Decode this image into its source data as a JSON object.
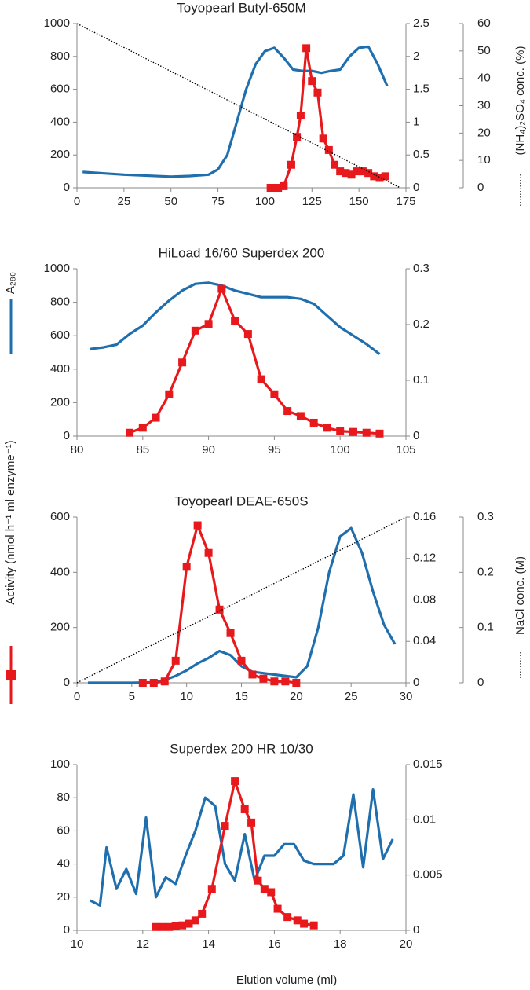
{
  "legend": [
    {
      "name": "A₂₈₀",
      "color": "#1f6fae"
    },
    {
      "name": "Activity (nmol h⁻¹ ml enzyme⁻¹)",
      "color": "#e8191c"
    }
  ],
  "xlabel": "Elution volume (ml)",
  "chart_data": [
    {
      "type": "line",
      "title": "Toyopearl Butyl-650M",
      "xlim": [
        0,
        175
      ],
      "xticks": [
        0,
        25,
        50,
        75,
        100,
        125,
        150,
        175
      ],
      "ylim": [
        0,
        1000
      ],
      "yticks": [
        0,
        200,
        400,
        600,
        800,
        1000
      ],
      "y2lim": [
        0,
        2.5
      ],
      "y2ticks": [
        0,
        0.5,
        1,
        1.5,
        2,
        2.5
      ],
      "y3lim": [
        0,
        60
      ],
      "y3ticks": [
        0,
        10,
        20,
        30,
        40,
        50,
        60
      ],
      "y3label": "(NH₄)₂SO₄ conc. (%)",
      "series": [
        {
          "axis": "y2",
          "color": "#1f6fae",
          "x": [
            3,
            25,
            50,
            60,
            70,
            75,
            80,
            85,
            90,
            95,
            100,
            105,
            110,
            115,
            120,
            125,
            130,
            135,
            140,
            145,
            150,
            155,
            160,
            165
          ],
          "values": [
            0.24,
            0.2,
            0.17,
            0.18,
            0.2,
            0.28,
            0.5,
            1,
            1.5,
            1.88,
            2.08,
            2.13,
            1.98,
            1.8,
            1.78,
            1.78,
            1.75,
            1.78,
            1.8,
            2,
            2.13,
            2.15,
            1.88,
            1.55
          ]
        },
        {
          "axis": "y",
          "color": "#e8191c",
          "marker": "square",
          "x": [
            103,
            105,
            107,
            110,
            114,
            117,
            119,
            122,
            125,
            128,
            131,
            134,
            137,
            140,
            143,
            146,
            149,
            152,
            155,
            158,
            161,
            164
          ],
          "values": [
            0,
            0,
            0,
            10,
            140,
            310,
            440,
            850,
            650,
            580,
            300,
            230,
            140,
            100,
            90,
            80,
            100,
            100,
            90,
            70,
            60,
            70
          ]
        },
        {
          "axis": "y3",
          "color": "#000000",
          "line_style": "dotted",
          "x": [
            0,
            172
          ],
          "values": [
            60,
            0
          ]
        }
      ]
    },
    {
      "type": "line",
      "title": "HiLoad 16/60 Superdex 200",
      "xlim": [
        80,
        105
      ],
      "xticks": [
        80,
        85,
        90,
        95,
        100,
        105
      ],
      "ylim": [
        0,
        1000
      ],
      "yticks": [
        0,
        200,
        400,
        600,
        800,
        1000
      ],
      "y2lim": [
        0,
        0.3
      ],
      "y2ticks": [
        0,
        0.1,
        0.2,
        0.3
      ],
      "series": [
        {
          "axis": "y2",
          "color": "#1f6fae",
          "x": [
            81,
            82,
            83,
            84,
            85,
            86,
            87,
            88,
            89,
            90,
            91,
            92,
            93,
            94,
            95,
            96,
            97,
            98,
            99,
            100,
            101,
            102,
            103
          ],
          "values": [
            0.156,
            0.159,
            0.164,
            0.183,
            0.198,
            0.222,
            0.243,
            0.261,
            0.273,
            0.275,
            0.27,
            0.261,
            0.255,
            0.249,
            0.249,
            0.249,
            0.246,
            0.237,
            0.216,
            0.195,
            0.18,
            0.165,
            0.147
          ]
        },
        {
          "axis": "y",
          "color": "#e8191c",
          "marker": "square",
          "x": [
            84,
            85,
            86,
            87,
            88,
            89,
            90,
            91,
            92,
            93,
            94,
            95,
            96,
            97,
            98,
            99,
            100,
            101,
            102,
            103
          ],
          "values": [
            20,
            50,
            110,
            250,
            440,
            630,
            670,
            880,
            690,
            610,
            340,
            250,
            150,
            120,
            80,
            50,
            30,
            25,
            20,
            15
          ]
        }
      ]
    },
    {
      "type": "line",
      "title": "Toyopearl DEAE-650S",
      "xlim": [
        0,
        30
      ],
      "xticks": [
        0,
        5,
        10,
        15,
        20,
        25,
        30
      ],
      "ylim": [
        0,
        600
      ],
      "yticks": [
        0,
        200,
        400,
        600
      ],
      "y2lim": [
        0,
        0.16
      ],
      "y2ticks": [
        0,
        0.04,
        0.08,
        0.12,
        0.16
      ],
      "y3lim": [
        0,
        0.3
      ],
      "y3ticks": [
        0,
        0.1,
        0.2,
        0.3
      ],
      "y3label": "NaCl conc. (M)",
      "series": [
        {
          "axis": "y2",
          "color": "#1f6fae",
          "x": [
            1,
            3,
            5,
            7,
            8,
            9,
            10,
            11,
            12,
            13,
            14,
            15,
            16,
            17,
            18,
            19,
            20,
            21,
            22,
            23,
            24,
            25,
            26,
            27,
            28,
            29
          ],
          "values": [
            0,
            0,
            0,
            0.0005,
            0.0027,
            0.0067,
            0.012,
            0.0187,
            0.024,
            0.0307,
            0.0267,
            0.016,
            0.0107,
            0.0093,
            0.008,
            0.0067,
            0.0053,
            0.016,
            0.0533,
            0.1067,
            0.1413,
            0.1493,
            0.1253,
            0.088,
            0.056,
            0.0373
          ]
        },
        {
          "axis": "y",
          "color": "#e8191c",
          "marker": "square",
          "x": [
            6,
            7,
            8,
            9,
            10,
            11,
            12,
            13,
            14,
            15,
            16,
            17,
            18,
            19,
            20
          ],
          "values": [
            0,
            0,
            5,
            80,
            420,
            570,
            470,
            265,
            180,
            80,
            30,
            15,
            5,
            5,
            0
          ]
        },
        {
          "axis": "y3",
          "color": "#000000",
          "line_style": "dotted",
          "x": [
            0,
            30
          ],
          "values": [
            0,
            0.3
          ]
        }
      ]
    },
    {
      "type": "line",
      "title": "Superdex 200 HR 10/30",
      "xlim": [
        10,
        20
      ],
      "xticks": [
        10,
        12,
        14,
        16,
        18,
        20
      ],
      "ylim": [
        0,
        100
      ],
      "yticks": [
        0,
        20,
        40,
        60,
        80,
        100
      ],
      "y2lim": [
        0,
        0.015
      ],
      "y2ticks": [
        0,
        0.005,
        0.01,
        0.015
      ],
      "series": [
        {
          "axis": "y2",
          "color": "#1f6fae",
          "x": [
            10.4,
            10.7,
            10.9,
            11.2,
            11.5,
            11.8,
            12.1,
            12.4,
            12.7,
            13.0,
            13.3,
            13.6,
            13.9,
            14.2,
            14.5,
            14.8,
            15.1,
            15.4,
            15.7,
            16.0,
            16.3,
            16.6,
            16.9,
            17.2,
            17.5,
            17.8,
            18.1,
            18.4,
            18.7,
            19.0,
            19.3,
            19.6
          ],
          "values": [
            0.0027,
            0.00225,
            0.0075,
            0.00375,
            0.00555,
            0.0033,
            0.0102,
            0.003,
            0.0048,
            0.0042,
            0.00675,
            0.009,
            0.012,
            0.01125,
            0.006,
            0.0045,
            0.0087,
            0.0045,
            0.00675,
            0.00675,
            0.0078,
            0.0078,
            0.0063,
            0.006,
            0.006,
            0.006,
            0.00675,
            0.0123,
            0.0057,
            0.01275,
            0.00645,
            0.00825
          ]
        },
        {
          "axis": "y",
          "color": "#e8191c",
          "marker": "square",
          "x": [
            12.4,
            12.6,
            12.8,
            13.0,
            13.2,
            13.4,
            13.6,
            13.8,
            14.1,
            14.5,
            14.8,
            15.1,
            15.3,
            15.5,
            15.7,
            15.9,
            16.1,
            16.4,
            16.7,
            16.9,
            17.2
          ],
          "values": [
            2,
            2,
            2,
            2.5,
            3,
            4,
            6,
            10,
            25,
            63,
            90,
            73,
            65,
            30,
            25,
            23,
            13,
            8,
            6,
            4,
            3
          ]
        }
      ]
    }
  ]
}
